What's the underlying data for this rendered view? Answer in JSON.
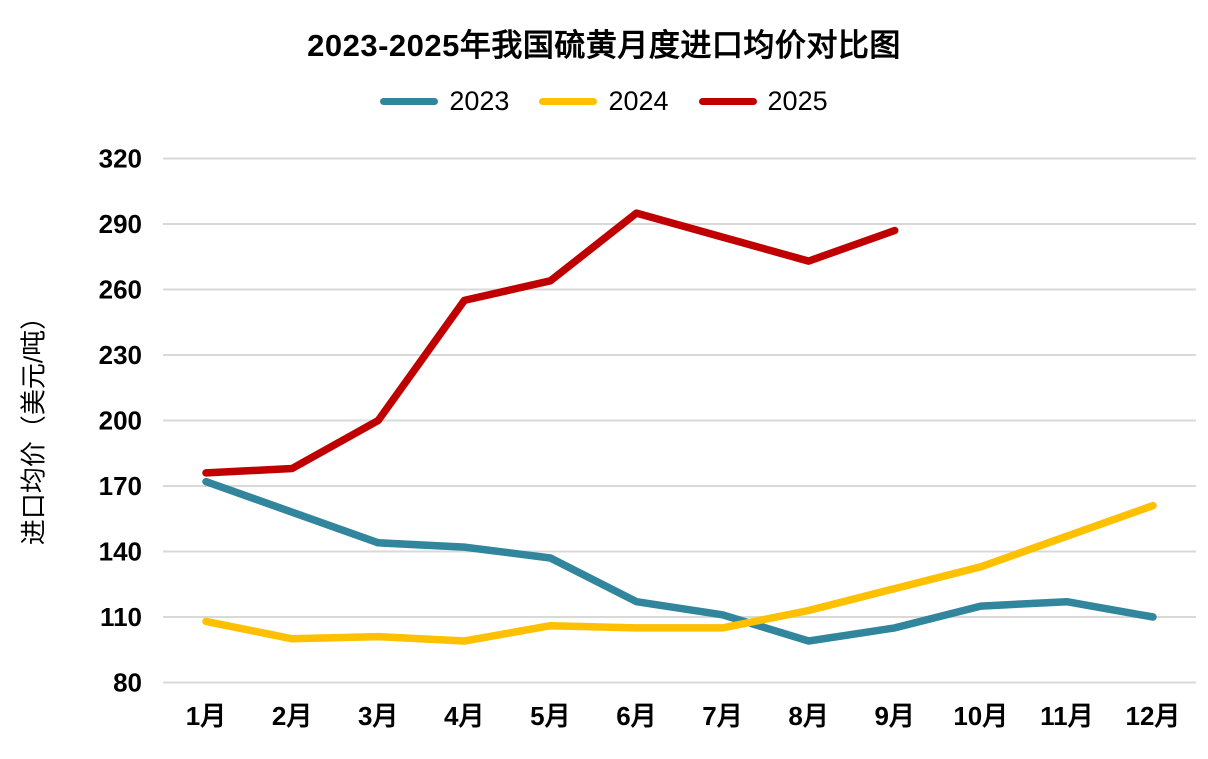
{
  "chart_data": {
    "type": "line",
    "title": "2023-2025年我国硫黄月度进口均价对比图",
    "ylabel": "进口均价（美元/吨）",
    "xlabel": "",
    "categories": [
      "1月",
      "2月",
      "3月",
      "4月",
      "5月",
      "6月",
      "7月",
      "8月",
      "9月",
      "10月",
      "11月",
      "12月"
    ],
    "series": [
      {
        "name": "2023",
        "color": "#31859C",
        "values": [
          172,
          158,
          144,
          142,
          137,
          117,
          111,
          99,
          105,
          115,
          117,
          110
        ]
      },
      {
        "name": "2024",
        "color": "#FFC000",
        "values": [
          108,
          100,
          101,
          99,
          106,
          105,
          105,
          113,
          123,
          133,
          147,
          161
        ]
      },
      {
        "name": "2025",
        "color": "#C00000",
        "values": [
          176,
          178,
          200,
          255,
          264,
          295,
          284,
          273,
          287,
          null,
          null,
          null
        ]
      }
    ],
    "ylim": [
      80,
      320
    ],
    "yticks": [
      80,
      110,
      140,
      170,
      200,
      230,
      260,
      290,
      320
    ],
    "grid": "horizontal",
    "gridline_color": "#D9D9D9",
    "legend_position": "top"
  }
}
